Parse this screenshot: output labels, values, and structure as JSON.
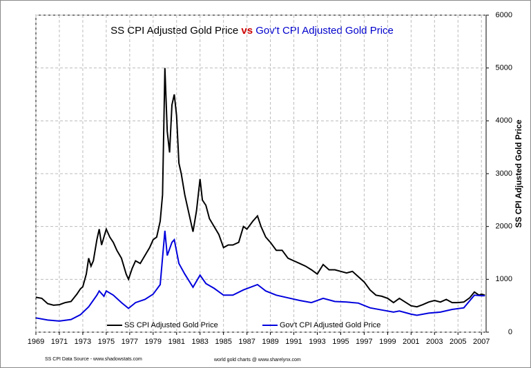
{
  "chart_data": {
    "type": "line",
    "title": [
      "SS CPI Adjusted Gold Price",
      "vs",
      "Gov't CPI Adjusted Gold Price"
    ],
    "title_colors": [
      "#000000",
      "#cc0000",
      "#0000cc"
    ],
    "y_label": "SS CPI Adjusted Gold Price",
    "footnotes": [
      "SS CPI Data Source - www.shadowstats.com",
      "world gold charts @ www.sharelynx.com"
    ],
    "xlim": [
      1969,
      2007.4
    ],
    "xticks": [
      1969,
      1971,
      1973,
      1975,
      1977,
      1979,
      1981,
      1983,
      1985,
      1987,
      1989,
      1991,
      1993,
      1995,
      1997,
      1999,
      2001,
      2003,
      2005,
      2007
    ],
    "ylim": [
      0,
      6000
    ],
    "yticks": [
      0,
      1000,
      2000,
      3000,
      4000,
      5000,
      6000
    ],
    "grid": true,
    "legend": "bottom",
    "series": [
      {
        "name": "SS CPI Adjusted Gold Price",
        "color": "#000000",
        "x": [
          1969,
          1969.5,
          1970,
          1970.5,
          1971,
          1971.5,
          1972,
          1972.5,
          1972.8,
          1973,
          1973.3,
          1973.5,
          1973.7,
          1973.9,
          1974.2,
          1974.4,
          1974.6,
          1974.8,
          1975,
          1975.3,
          1975.6,
          1975.9,
          1976.3,
          1976.7,
          1976.9,
          1977.2,
          1977.5,
          1977.9,
          1978.3,
          1978.7,
          1979,
          1979.3,
          1979.6,
          1979.8,
          1980,
          1980.2,
          1980.4,
          1980.6,
          1980.8,
          1981,
          1981.2,
          1981.4,
          1981.7,
          1982,
          1982.4,
          1982.7,
          1983,
          1983.2,
          1983.5,
          1983.8,
          1984.2,
          1984.6,
          1985,
          1985.4,
          1985.8,
          1986.3,
          1986.7,
          1987,
          1987.5,
          1987.9,
          1988.2,
          1988.6,
          1989,
          1989.5,
          1990,
          1990.5,
          1991,
          1991.5,
          1992,
          1992.5,
          1993,
          1993.5,
          1994,
          1994.5,
          1995,
          1995.5,
          1996,
          1996.5,
          1997,
          1997.5,
          1998,
          1998.5,
          1999,
          1999.5,
          2000,
          2000.5,
          2001,
          2001.5,
          2002,
          2002.5,
          2003,
          2003.5,
          2004,
          2004.5,
          2005,
          2005.5,
          2006,
          2006.4,
          2006.8,
          2007,
          2007.3
        ],
        "values": [
          660,
          640,
          540,
          510,
          520,
          560,
          580,
          720,
          820,
          860,
          1100,
          1400,
          1250,
          1350,
          1750,
          1950,
          1650,
          1800,
          1950,
          1800,
          1700,
          1550,
          1400,
          1100,
          1000,
          1200,
          1350,
          1300,
          1450,
          1600,
          1750,
          1800,
          2100,
          2600,
          5000,
          3800,
          3400,
          4300,
          4500,
          4100,
          3200,
          3000,
          2600,
          2300,
          1900,
          2300,
          2900,
          2500,
          2400,
          2150,
          2000,
          1850,
          1600,
          1650,
          1650,
          1700,
          2000,
          1950,
          2100,
          2200,
          2000,
          1800,
          1700,
          1550,
          1550,
          1400,
          1350,
          1300,
          1250,
          1180,
          1100,
          1280,
          1180,
          1180,
          1150,
          1120,
          1150,
          1050,
          950,
          800,
          700,
          680,
          640,
          560,
          640,
          570,
          500,
          480,
          520,
          570,
          600,
          570,
          620,
          560,
          560,
          570,
          650,
          760,
          700,
          720,
          700
        ]
      },
      {
        "name": "Gov't CPI Adjusted Gold Price",
        "color": "#0000dd",
        "x": [
          1969,
          1970,
          1971,
          1972,
          1972.8,
          1973.5,
          1974.2,
          1974.4,
          1974.8,
          1975,
          1975.6,
          1976.3,
          1976.9,
          1977.5,
          1978.3,
          1979,
          1979.6,
          1980,
          1980.2,
          1980.6,
          1980.8,
          1981.2,
          1981.7,
          1982.4,
          1983,
          1983.5,
          1984.2,
          1985,
          1985.8,
          1986.7,
          1987.9,
          1988.6,
          1989.5,
          1990.5,
          1991.5,
          1992.5,
          1993.5,
          1994.5,
          1995.5,
          1996.5,
          1997.5,
          1998.5,
          1999.5,
          2000,
          2001,
          2001.5,
          2002.5,
          2003.5,
          2004.5,
          2005.5,
          2006.4,
          2007,
          2007.3
        ],
        "values": [
          270,
          230,
          210,
          240,
          330,
          480,
          700,
          780,
          680,
          780,
          700,
          560,
          450,
          560,
          620,
          720,
          900,
          1920,
          1450,
          1700,
          1750,
          1300,
          1100,
          850,
          1080,
          920,
          830,
          700,
          700,
          800,
          900,
          780,
          700,
          650,
          600,
          560,
          640,
          580,
          570,
          550,
          460,
          420,
          380,
          400,
          340,
          320,
          360,
          380,
          430,
          460,
          700,
          690,
          690
        ]
      }
    ]
  }
}
